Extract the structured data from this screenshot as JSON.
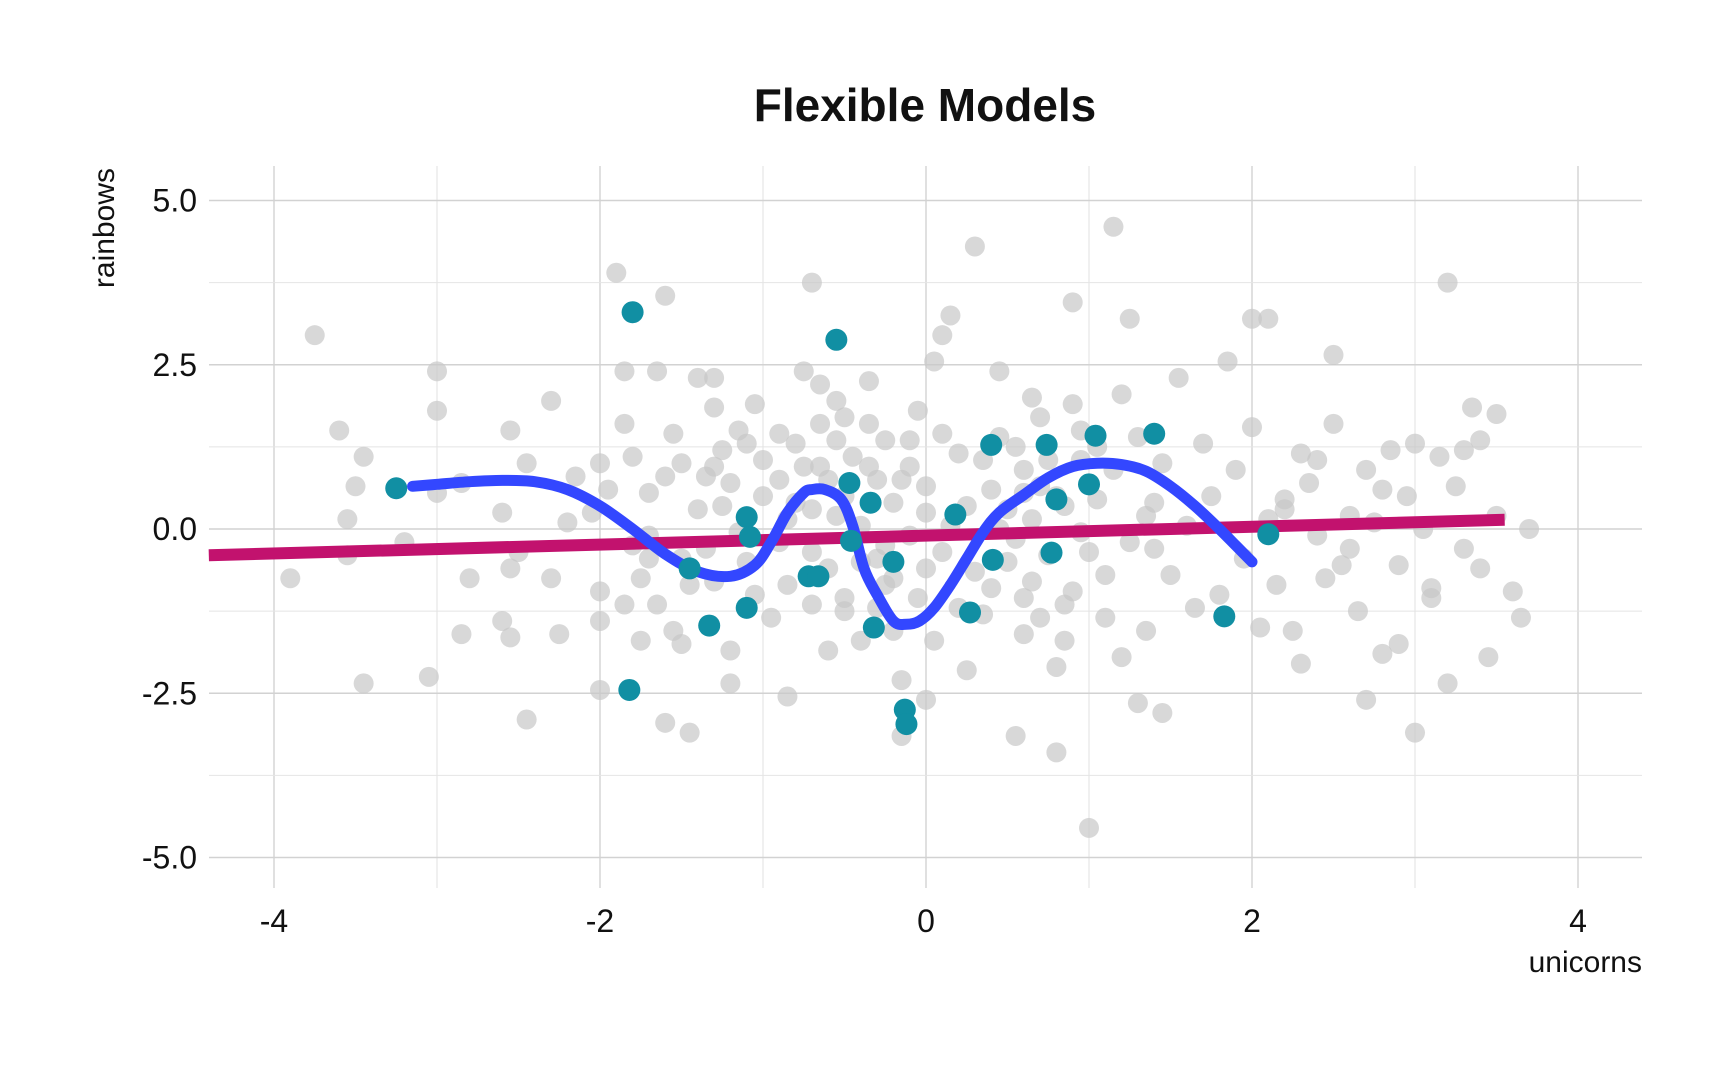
{
  "chart_data": {
    "type": "scatter",
    "title": "Flexible Models",
    "xlabel": "unicorns",
    "ylabel": "rainbows",
    "xlim": [
      -4.4,
      4.4
    ],
    "ylim": [
      -5.5,
      5.5
    ],
    "x_ticks": [
      -4,
      -2,
      0,
      2,
      4
    ],
    "x_tick_labels": [
      "-4",
      "-2",
      "0",
      "2",
      "4"
    ],
    "y_ticks": [
      5.0,
      2.5,
      0.0,
      -2.5,
      -5.0
    ],
    "y_tick_labels": [
      "5.0",
      "2.5",
      "0.0",
      "-2.5",
      "-5.0"
    ],
    "grid": true,
    "colors": {
      "background_points": "#c8c8c8",
      "highlight_points": "#118fa3",
      "linear_fit": "#c2126e",
      "flexible_fit": "#3347ff"
    },
    "background_points": [
      [
        -3.75,
        2.95
      ],
      [
        -3.6,
        1.5
      ],
      [
        -3.55,
        0.15
      ],
      [
        -3.55,
        -0.4
      ],
      [
        -3.45,
        -2.35
      ],
      [
        -3.5,
        0.65
      ],
      [
        -3.45,
        1.1
      ],
      [
        -3.0,
        2.4
      ],
      [
        -3.0,
        1.8
      ],
      [
        -3.0,
        0.55
      ],
      [
        -3.2,
        -0.2
      ],
      [
        -3.05,
        -2.25
      ],
      [
        -2.85,
        0.7
      ],
      [
        -2.8,
        -0.75
      ],
      [
        -2.85,
        -1.6
      ],
      [
        -2.55,
        1.5
      ],
      [
        -2.6,
        0.25
      ],
      [
        -2.55,
        -0.6
      ],
      [
        -2.6,
        -1.4
      ],
      [
        -2.55,
        -1.65
      ],
      [
        -2.45,
        1.0
      ],
      [
        -2.5,
        -0.35
      ],
      [
        -2.45,
        -2.9
      ],
      [
        -2.3,
        1.95
      ],
      [
        -2.3,
        -0.75
      ],
      [
        -2.25,
        -1.6
      ],
      [
        -2.2,
        0.1
      ],
      [
        -2.15,
        0.8
      ],
      [
        -2.05,
        0.25
      ],
      [
        -2.0,
        -0.95
      ],
      [
        -2.0,
        1.0
      ],
      [
        -2.0,
        -1.4
      ],
      [
        -2.0,
        -2.45
      ],
      [
        -1.9,
        3.9
      ],
      [
        -1.85,
        2.4
      ],
      [
        -1.85,
        1.6
      ],
      [
        -1.8,
        -0.25
      ],
      [
        -1.75,
        -0.75
      ],
      [
        -1.75,
        -1.7
      ],
      [
        -1.7,
        0.55
      ],
      [
        -1.7,
        -0.1
      ],
      [
        -1.65,
        -1.15
      ],
      [
        -1.65,
        2.4
      ],
      [
        -1.6,
        -2.95
      ],
      [
        -1.6,
        3.55
      ],
      [
        -1.55,
        -1.55
      ],
      [
        -1.55,
        1.45
      ],
      [
        -1.5,
        -0.45
      ],
      [
        -1.5,
        -1.75
      ],
      [
        -1.45,
        -3.1
      ],
      [
        -1.4,
        2.3
      ],
      [
        -1.35,
        0.8
      ],
      [
        -1.3,
        2.3
      ],
      [
        -1.3,
        1.85
      ],
      [
        -1.3,
        0.95
      ],
      [
        -1.3,
        -0.8
      ],
      [
        -1.25,
        0.35
      ],
      [
        -1.2,
        -2.35
      ],
      [
        -1.2,
        0.7
      ],
      [
        -1.15,
        1.5
      ],
      [
        -1.1,
        -0.5
      ],
      [
        -1.1,
        1.3
      ],
      [
        -1.05,
        1.9
      ],
      [
        -1.05,
        -1.0
      ],
      [
        -1.0,
        0.5
      ],
      [
        -0.9,
        0.75
      ],
      [
        -0.9,
        -0.2
      ],
      [
        -0.85,
        -2.55
      ],
      [
        -0.85,
        0.15
      ],
      [
        -0.8,
        1.3
      ],
      [
        -0.75,
        2.4
      ],
      [
        -0.75,
        0.95
      ],
      [
        -0.7,
        3.75
      ],
      [
        -0.7,
        0.3
      ],
      [
        -0.7,
        -0.35
      ],
      [
        -0.65,
        1.6
      ],
      [
        -0.65,
        2.2
      ],
      [
        -0.6,
        0.75
      ],
      [
        -0.6,
        -0.6
      ],
      [
        -0.55,
        1.35
      ],
      [
        -0.55,
        1.95
      ],
      [
        -0.5,
        0.5
      ],
      [
        -0.5,
        -1.05
      ],
      [
        -0.5,
        -1.25
      ],
      [
        -0.45,
        1.1
      ],
      [
        -0.4,
        0.05
      ],
      [
        -0.4,
        -0.5
      ],
      [
        -0.35,
        1.6
      ],
      [
        -0.35,
        2.25
      ],
      [
        -0.3,
        0.75
      ],
      [
        -0.25,
        -0.25
      ],
      [
        -0.2,
        -1.55
      ],
      [
        -0.2,
        0.4
      ],
      [
        -0.15,
        -3.15
      ],
      [
        -0.15,
        0.75
      ],
      [
        -0.1,
        1.35
      ],
      [
        -0.05,
        -1.05
      ],
      [
        0.0,
        0.65
      ],
      [
        0.0,
        -0.6
      ],
      [
        0.05,
        -1.7
      ],
      [
        0.1,
        2.95
      ],
      [
        0.1,
        1.45
      ],
      [
        0.15,
        3.25
      ],
      [
        0.15,
        0.05
      ],
      [
        0.2,
        -1.2
      ],
      [
        0.25,
        0.35
      ],
      [
        0.3,
        -0.65
      ],
      [
        0.3,
        4.3
      ],
      [
        0.35,
        1.05
      ],
      [
        0.4,
        -0.9
      ],
      [
        0.45,
        2.4
      ],
      [
        0.5,
        0.3
      ],
      [
        0.55,
        -3.15
      ],
      [
        0.55,
        1.25
      ],
      [
        0.6,
        -1.05
      ],
      [
        0.6,
        -1.6
      ],
      [
        0.65,
        0.15
      ],
      [
        0.7,
        -1.35
      ],
      [
        0.7,
        0.65
      ],
      [
        0.75,
        -0.4
      ],
      [
        0.8,
        -3.4
      ],
      [
        0.85,
        -1.7
      ],
      [
        0.9,
        3.45
      ],
      [
        0.95,
        1.05
      ],
      [
        1.0,
        -0.35
      ],
      [
        1.05,
        0.45
      ],
      [
        1.1,
        -1.35
      ],
      [
        1.15,
        0.9
      ],
      [
        1.2,
        2.05
      ],
      [
        1.25,
        -0.2
      ],
      [
        1.3,
        1.4
      ],
      [
        1.35,
        -1.55
      ],
      [
        1.4,
        0.4
      ],
      [
        1.45,
        1.0
      ],
      [
        1.5,
        -0.7
      ],
      [
        1.55,
        2.3
      ],
      [
        1.6,
        0.05
      ],
      [
        1.65,
        -1.2
      ],
      [
        1.7,
        1.3
      ],
      [
        1.75,
        0.5
      ],
      [
        1.8,
        -1.0
      ],
      [
        1.85,
        2.55
      ],
      [
        1.9,
        0.9
      ],
      [
        1.95,
        -0.45
      ],
      [
        2.0,
        1.55
      ],
      [
        2.05,
        -1.5
      ],
      [
        2.1,
        0.15
      ],
      [
        2.15,
        -0.85
      ],
      [
        2.2,
        0.45
      ],
      [
        2.25,
        -1.55
      ],
      [
        2.3,
        1.15
      ],
      [
        2.35,
        0.7
      ],
      [
        2.4,
        -0.1
      ],
      [
        2.45,
        -0.75
      ],
      [
        2.5,
        1.6
      ],
      [
        2.55,
        -0.55
      ],
      [
        2.6,
        0.2
      ],
      [
        2.65,
        -1.25
      ],
      [
        2.7,
        0.9
      ],
      [
        2.75,
        0.1
      ],
      [
        2.8,
        -1.9
      ],
      [
        2.85,
        1.2
      ],
      [
        2.9,
        -0.55
      ],
      [
        2.95,
        0.5
      ],
      [
        3.0,
        -3.1
      ],
      [
        3.05,
        0.0
      ],
      [
        3.1,
        -1.05
      ],
      [
        3.15,
        1.1
      ],
      [
        3.2,
        -2.35
      ],
      [
        3.25,
        0.65
      ],
      [
        3.3,
        -0.3
      ],
      [
        3.35,
        1.85
      ],
      [
        3.4,
        1.35
      ],
      [
        3.45,
        -1.95
      ],
      [
        3.5,
        0.2
      ],
      [
        -0.4,
        -1.7
      ],
      [
        -0.3,
        -1.2
      ],
      [
        -0.25,
        -0.85
      ],
      [
        -0.15,
        -2.3
      ],
      [
        -0.1,
        0.95
      ],
      [
        0.0,
        -2.6
      ],
      [
        0.05,
        2.55
      ],
      [
        0.1,
        -0.35
      ],
      [
        0.2,
        1.15
      ],
      [
        0.25,
        -2.15
      ],
      [
        0.35,
        -1.3
      ],
      [
        0.45,
        0.0
      ],
      [
        0.5,
        -0.5
      ],
      [
        0.6,
        0.9
      ],
      [
        0.65,
        2.0
      ],
      [
        0.7,
        1.7
      ],
      [
        0.8,
        -2.1
      ],
      [
        0.85,
        0.35
      ],
      [
        0.9,
        -0.95
      ],
      [
        0.95,
        1.5
      ],
      [
        1.0,
        -4.55
      ],
      [
        1.05,
        1.25
      ],
      [
        1.1,
        -0.7
      ],
      [
        1.15,
        4.6
      ],
      [
        1.2,
        -1.95
      ],
      [
        1.25,
        3.2
      ],
      [
        1.3,
        -2.65
      ],
      [
        1.35,
        0.2
      ],
      [
        1.4,
        -0.3
      ],
      [
        1.45,
        -2.8
      ],
      [
        -1.2,
        -1.85
      ],
      [
        -1.15,
        -0.05
      ],
      [
        -1.0,
        1.05
      ],
      [
        -0.95,
        -1.35
      ],
      [
        -0.9,
        1.45
      ],
      [
        -0.85,
        -0.85
      ],
      [
        -0.8,
        0.4
      ],
      [
        -0.7,
        -1.15
      ],
      [
        -0.65,
        0.95
      ],
      [
        -0.6,
        -1.85
      ],
      [
        -0.55,
        0.2
      ],
      [
        -0.5,
        1.7
      ],
      [
        -0.45,
        -0.2
      ],
      [
        -0.35,
        0.95
      ],
      [
        -0.3,
        -0.45
      ],
      [
        -0.25,
        1.35
      ],
      [
        -0.2,
        -0.75
      ],
      [
        -0.1,
        -0.1
      ],
      [
        -0.05,
        1.8
      ],
      [
        0.0,
        0.25
      ],
      [
        -1.95,
        0.6
      ],
      [
        -1.85,
        -1.15
      ],
      [
        -1.8,
        1.1
      ],
      [
        -1.7,
        -0.45
      ],
      [
        -1.6,
        0.8
      ],
      [
        -1.5,
        1.0
      ],
      [
        -1.45,
        -0.85
      ],
      [
        -1.4,
        0.3
      ],
      [
        -1.35,
        -0.3
      ],
      [
        -1.25,
        1.2
      ],
      [
        2.0,
        3.2
      ],
      [
        2.1,
        3.2
      ],
      [
        2.2,
        0.3
      ],
      [
        2.3,
        -2.05
      ],
      [
        2.4,
        1.05
      ],
      [
        2.5,
        2.65
      ],
      [
        2.6,
        -0.3
      ],
      [
        2.7,
        -2.6
      ],
      [
        2.8,
        0.6
      ],
      [
        2.9,
        -1.75
      ],
      [
        3.0,
        1.3
      ],
      [
        3.1,
        -0.9
      ],
      [
        3.2,
        3.75
      ],
      [
        3.3,
        1.2
      ],
      [
        3.4,
        -0.6
      ],
      [
        3.5,
        1.75
      ],
      [
        3.6,
        -0.95
      ],
      [
        3.65,
        -1.35
      ],
      [
        3.7,
        0.0
      ],
      [
        -3.9,
        -0.75
      ],
      [
        0.4,
        0.6
      ],
      [
        0.45,
        1.4
      ],
      [
        0.55,
        -0.15
      ],
      [
        0.6,
        0.55
      ],
      [
        0.65,
        -0.8
      ],
      [
        0.75,
        1.05
      ],
      [
        0.8,
        0.5
      ],
      [
        0.85,
        -1.15
      ],
      [
        0.9,
        1.9
      ],
      [
        0.95,
        -0.05
      ]
    ],
    "highlight_points": [
      [
        -3.25,
        0.62
      ],
      [
        -1.8,
        3.3
      ],
      [
        -1.82,
        -2.45
      ],
      [
        -1.45,
        -0.6
      ],
      [
        -1.33,
        -1.47
      ],
      [
        -1.1,
        0.18
      ],
      [
        -1.08,
        -0.12
      ],
      [
        -1.1,
        -1.2
      ],
      [
        -0.72,
        -0.72
      ],
      [
        -0.66,
        -0.72
      ],
      [
        -0.55,
        2.88
      ],
      [
        -0.47,
        0.7
      ],
      [
        -0.46,
        -0.18
      ],
      [
        -0.34,
        0.4
      ],
      [
        -0.32,
        -1.5
      ],
      [
        -0.2,
        -0.5
      ],
      [
        -0.13,
        -2.75
      ],
      [
        -0.12,
        -2.97
      ],
      [
        0.18,
        0.22
      ],
      [
        0.27,
        -1.27
      ],
      [
        0.4,
        1.28
      ],
      [
        0.41,
        -0.47
      ],
      [
        0.74,
        1.28
      ],
      [
        0.77,
        -0.36
      ],
      [
        0.8,
        0.45
      ],
      [
        1.0,
        0.68
      ],
      [
        1.04,
        1.42
      ],
      [
        1.4,
        1.45
      ],
      [
        1.83,
        -1.33
      ],
      [
        2.1,
        -0.08
      ]
    ],
    "linear_fit": {
      "x": [
        -4.4,
        3.55
      ],
      "y": [
        -0.4,
        0.14
      ]
    },
    "flexible_fit": {
      "x": [
        -3.15,
        -3.0,
        -2.8,
        -2.6,
        -2.4,
        -2.2,
        -2.0,
        -1.8,
        -1.6,
        -1.4,
        -1.2,
        -1.05,
        -0.95,
        -0.85,
        -0.75,
        -0.7,
        -0.62,
        -0.52,
        -0.45,
        -0.38,
        -0.3,
        -0.2,
        -0.12,
        -0.04,
        0.05,
        0.15,
        0.25,
        0.35,
        0.45,
        0.6,
        0.75,
        0.9,
        1.05,
        1.2,
        1.35,
        1.5,
        1.65,
        1.8,
        1.9,
        2.0
      ],
      "y": [
        0.65,
        0.68,
        0.72,
        0.74,
        0.72,
        0.6,
        0.35,
        0.0,
        -0.38,
        -0.65,
        -0.72,
        -0.55,
        -0.2,
        0.25,
        0.55,
        0.6,
        0.6,
        0.45,
        0.05,
        -0.6,
        -1.0,
        -1.4,
        -1.45,
        -1.4,
        -1.2,
        -0.85,
        -0.45,
        -0.05,
        0.25,
        0.52,
        0.78,
        0.95,
        1.0,
        0.98,
        0.88,
        0.65,
        0.35,
        0.0,
        -0.25,
        -0.5
      ]
    }
  }
}
